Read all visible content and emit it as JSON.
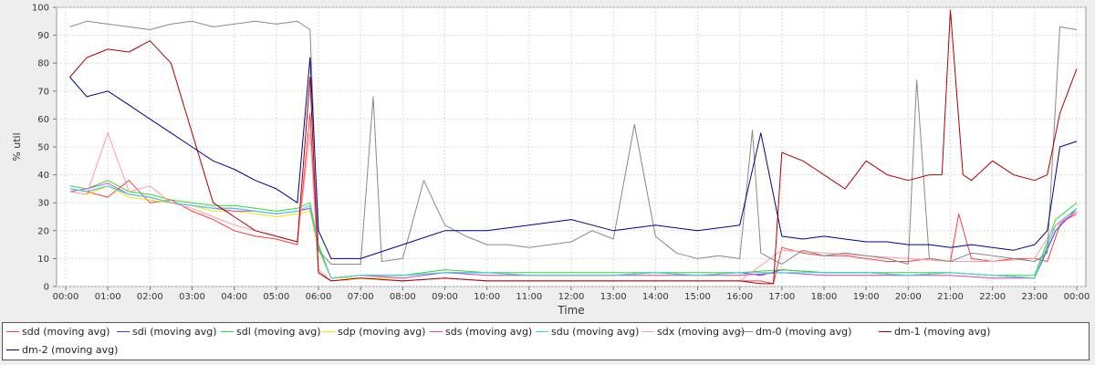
{
  "chart_data": {
    "type": "line",
    "title": "",
    "xlabel": "Time",
    "ylabel": "% util",
    "ylim": [
      0,
      100
    ],
    "yticks": [
      0,
      10,
      20,
      30,
      40,
      50,
      60,
      70,
      80,
      90,
      100
    ],
    "xlim": [
      0,
      24
    ],
    "xticks": [
      "00:00",
      "01:00",
      "02:00",
      "03:00",
      "04:00",
      "05:00",
      "06:00",
      "07:00",
      "08:00",
      "09:00",
      "10:00",
      "11:00",
      "12:00",
      "13:00",
      "14:00",
      "15:00",
      "16:00",
      "17:00",
      "18:00",
      "19:00",
      "20:00",
      "21:00",
      "22:00",
      "23:00",
      "00:00"
    ],
    "grid": true,
    "legend_position": "bottom",
    "series": [
      {
        "name": "sdd (moving avg)",
        "color": "#ff3b3b",
        "x": [
          0.1,
          0.5,
          1,
          1.5,
          2,
          2.5,
          3,
          3.5,
          4,
          4.5,
          5,
          5.5,
          5.8,
          6,
          6.3,
          7,
          8,
          9,
          10,
          11,
          12,
          13,
          14,
          15,
          16,
          16.5,
          16.8,
          17,
          17.5,
          18,
          18.5,
          19,
          19.5,
          20,
          20.5,
          21,
          21.2,
          21.5,
          22,
          22.5,
          23,
          23.3,
          23.6,
          24
        ],
        "y": [
          35,
          34,
          32,
          38,
          30,
          31,
          27,
          24,
          20,
          18,
          17,
          15,
          62,
          5,
          2,
          3,
          2,
          3,
          2,
          2,
          2,
          2,
          2,
          2,
          2,
          2,
          1,
          14,
          12,
          11,
          11,
          10,
          9,
          9,
          10,
          9,
          26,
          10,
          9,
          10,
          10,
          9,
          22,
          27
        ]
      },
      {
        "name": "sdi (moving avg)",
        "color": "#3a3aff",
        "x": [
          0.1,
          0.5,
          1,
          1.5,
          2,
          2.5,
          3,
          3.5,
          4,
          4.5,
          5,
          5.5,
          5.8,
          6,
          6.3,
          7,
          8,
          9,
          10,
          11,
          12,
          13,
          14,
          15,
          16,
          16.5,
          17,
          18,
          19,
          20,
          21,
          22,
          23,
          23.5,
          24
        ],
        "y": [
          35,
          34,
          36,
          33,
          32,
          30,
          29,
          28,
          28,
          27,
          26,
          27,
          28,
          14,
          3,
          4,
          4,
          5,
          5,
          4,
          4,
          4,
          5,
          4,
          5,
          4,
          6,
          5,
          5,
          4,
          5,
          4,
          3,
          20,
          28
        ]
      },
      {
        "name": "sdl (moving avg)",
        "color": "#2fdc2f",
        "x": [
          0.1,
          0.5,
          1,
          1.5,
          2,
          2.5,
          3,
          3.5,
          4,
          4.5,
          5,
          5.5,
          5.8,
          6,
          6.3,
          7,
          8,
          9,
          10,
          11,
          12,
          13,
          14,
          15,
          16,
          17,
          18,
          19,
          20,
          21,
          22,
          23,
          23.5,
          24
        ],
        "y": [
          36,
          35,
          38,
          34,
          33,
          31,
          30,
          29,
          29,
          28,
          27,
          28,
          30,
          15,
          3,
          4,
          4,
          6,
          5,
          5,
          5,
          5,
          5,
          5,
          5,
          6,
          5,
          5,
          5,
          5,
          4,
          4,
          24,
          30
        ]
      },
      {
        "name": "sdp (moving avg)",
        "color": "#e8e800",
        "x": [
          0.1,
          0.5,
          1,
          1.5,
          2,
          2.5,
          3,
          3.5,
          4,
          4.5,
          5,
          5.5,
          5.8,
          6,
          6.3,
          7,
          8,
          9,
          10,
          11,
          12,
          13,
          14,
          15,
          16,
          17,
          18,
          19,
          20,
          21,
          22,
          23,
          23.5,
          24
        ],
        "y": [
          34,
          33,
          36,
          32,
          31,
          30,
          29,
          27,
          27,
          26,
          25,
          26,
          27,
          13,
          3,
          3,
          3,
          5,
          4,
          4,
          4,
          4,
          4,
          4,
          4,
          5,
          4,
          4,
          4,
          4,
          3,
          3,
          22,
          28
        ]
      },
      {
        "name": "sds (moving avg)",
        "color": "#e040e0",
        "x": [
          0.1,
          0.5,
          1,
          1.5,
          2,
          2.5,
          3,
          3.5,
          4,
          4.5,
          5,
          5.5,
          5.8,
          6,
          6.3,
          7,
          8,
          9,
          10,
          11,
          12,
          13,
          14,
          15,
          16,
          17,
          18,
          19,
          20,
          21,
          22,
          23,
          23.5,
          24
        ],
        "y": [
          34,
          35,
          37,
          33,
          32,
          30,
          29,
          28,
          27,
          27,
          26,
          27,
          28,
          14,
          3,
          4,
          3,
          5,
          4,
          4,
          4,
          4,
          4,
          4,
          4,
          5,
          4,
          4,
          4,
          4,
          3,
          3,
          22,
          26
        ]
      },
      {
        "name": "sdu (moving avg)",
        "color": "#38d8e8",
        "x": [
          0.1,
          0.5,
          1,
          1.5,
          2,
          2.5,
          3,
          3.5,
          4,
          4.5,
          5,
          5.5,
          5.8,
          6,
          6.3,
          7,
          8,
          9,
          10,
          11,
          12,
          13,
          14,
          15,
          16,
          17,
          18,
          19,
          20,
          21,
          22,
          23,
          23.5,
          24
        ],
        "y": [
          35,
          34,
          36,
          33,
          32,
          30,
          29,
          28,
          28,
          27,
          26,
          27,
          29,
          14,
          3,
          4,
          4,
          5,
          5,
          4,
          4,
          4,
          5,
          4,
          5,
          5,
          5,
          5,
          4,
          5,
          4,
          3,
          22,
          28
        ]
      },
      {
        "name": "sdx (moving avg)",
        "color": "#ff9aa8",
        "x": [
          0.1,
          0.5,
          1,
          1.5,
          2,
          2.5,
          3,
          3.5,
          4,
          4.5,
          5,
          5.5,
          5.8,
          6,
          6.3,
          7,
          8,
          9,
          10,
          11,
          12,
          13,
          14,
          15,
          16,
          17,
          18,
          19,
          20,
          21,
          22,
          23,
          23.5,
          24
        ],
        "y": [
          34,
          33,
          55,
          34,
          36,
          30,
          28,
          25,
          22,
          20,
          18,
          16,
          55,
          6,
          2,
          3,
          2,
          3,
          2,
          2,
          2,
          2,
          2,
          2,
          2,
          13,
          12,
          11,
          10,
          9,
          9,
          10,
          22,
          27
        ]
      },
      {
        "name": "dm-0 (moving avg)",
        "color": "#888888",
        "x": [
          0.1,
          0.5,
          1,
          1.5,
          2,
          2.5,
          3,
          3.5,
          4,
          4.5,
          5,
          5.5,
          5.8,
          6,
          6.3,
          7,
          7.3,
          7.5,
          8,
          8.5,
          9,
          9.5,
          10,
          10.5,
          11,
          11.5,
          12,
          12.5,
          13,
          13.5,
          14,
          14.5,
          15,
          15.5,
          16,
          16.3,
          16.5,
          17,
          17.5,
          18,
          18.5,
          19,
          19.5,
          20,
          20.2,
          20.5,
          21,
          21.5,
          22,
          22.5,
          23,
          23.3,
          23.6,
          24
        ],
        "y": [
          93,
          95,
          94,
          93,
          92,
          94,
          95,
          93,
          94,
          95,
          94,
          95,
          92,
          13,
          8,
          8,
          68,
          9,
          10,
          38,
          22,
          18,
          15,
          15,
          14,
          15,
          16,
          20,
          17,
          58,
          18,
          12,
          10,
          11,
          10,
          56,
          12,
          8,
          13,
          11,
          12,
          11,
          10,
          8,
          74,
          10,
          9,
          12,
          11,
          10,
          9,
          12,
          93,
          92
        ]
      },
      {
        "name": "dm-1 (moving avg)",
        "color": "#b00000",
        "x": [
          0.1,
          0.5,
          1,
          1.5,
          2,
          2.5,
          3,
          3.5,
          4,
          4.5,
          5,
          5.5,
          5.8,
          6,
          6.3,
          7,
          8,
          9,
          10,
          11,
          12,
          13,
          14,
          15,
          16,
          16.5,
          16.8,
          17,
          17.5,
          18,
          18.5,
          19,
          19.5,
          20,
          20.5,
          20.8,
          21,
          21.3,
          21.5,
          22,
          22.5,
          23,
          23.3,
          23.6,
          24
        ],
        "y": [
          75,
          82,
          85,
          84,
          88,
          80,
          55,
          30,
          25,
          20,
          18,
          16,
          75,
          5,
          2,
          3,
          2,
          3,
          2,
          2,
          2,
          2,
          2,
          2,
          2,
          1,
          1,
          48,
          45,
          40,
          35,
          45,
          40,
          38,
          40,
          40,
          99,
          40,
          38,
          45,
          40,
          38,
          40,
          62,
          78
        ]
      },
      {
        "name": "dm-2 (moving avg)",
        "color": "#00008c",
        "x": [
          0.1,
          0.5,
          1,
          1.5,
          2,
          2.5,
          3,
          3.5,
          4,
          4.5,
          5,
          5.5,
          5.8,
          6,
          6.3,
          7,
          8,
          9,
          10,
          11,
          12,
          13,
          14,
          15,
          16,
          16.5,
          17,
          17.5,
          18,
          18.5,
          19,
          19.5,
          20,
          20.5,
          21,
          21.5,
          22,
          22.5,
          23,
          23.3,
          23.6,
          24
        ],
        "y": [
          75,
          68,
          70,
          65,
          60,
          55,
          50,
          45,
          42,
          38,
          35,
          30,
          82,
          20,
          10,
          10,
          15,
          20,
          20,
          22,
          24,
          20,
          22,
          20,
          22,
          55,
          18,
          17,
          18,
          17,
          16,
          16,
          15,
          15,
          14,
          15,
          14,
          13,
          15,
          20,
          50,
          52
        ]
      }
    ]
  }
}
